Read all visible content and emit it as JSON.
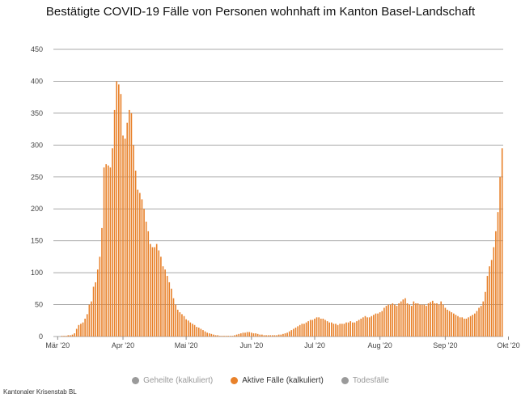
{
  "title": "Bestätigte COVID-19 Fälle von Personen wohnhaft im Kanton Basel-Landschaft",
  "source": "Kantonaler Krisenstab BL",
  "legend": [
    {
      "label": "Geheilte (kalkuliert)",
      "color": "#9a9a9a",
      "active": false
    },
    {
      "label": "Aktive Fälle (kalkuliert)",
      "color": "#e8812a",
      "active": true
    },
    {
      "label": "Todesfälle",
      "color": "#9a9a9a",
      "active": false
    }
  ],
  "chart_data": {
    "type": "bar",
    "title": "Bestätigte COVID-19 Fälle von Personen wohnhaft im Kanton Basel-Landschaft",
    "xlabel": "",
    "ylabel": "",
    "ylim": [
      0,
      450
    ],
    "yticks": [
      0,
      50,
      100,
      150,
      200,
      250,
      300,
      350,
      400,
      450
    ],
    "x_tick_labels": [
      "Mär '20",
      "Apr '20",
      "Mai '20",
      "Jun '20",
      "Jul '20",
      "Aug '20",
      "Sep '20",
      "Okt '20"
    ],
    "x_tick_index": [
      0,
      31,
      61,
      92,
      122,
      153,
      184,
      214
    ],
    "grid": true,
    "legend_position": "bottom",
    "bar_color": "#e8812a",
    "series": [
      {
        "name": "Aktive Fälle (kalkuliert)",
        "values": [
          0,
          0,
          1,
          1,
          1,
          2,
          2,
          3,
          5,
          12,
          18,
          20,
          22,
          28,
          35,
          50,
          55,
          78,
          85,
          105,
          125,
          170,
          265,
          270,
          268,
          265,
          295,
          355,
          400,
          395,
          380,
          315,
          310,
          335,
          355,
          350,
          300,
          260,
          230,
          225,
          215,
          200,
          180,
          165,
          145,
          140,
          140,
          145,
          135,
          125,
          110,
          105,
          95,
          85,
          75,
          60,
          50,
          42,
          38,
          35,
          32,
          27,
          25,
          22,
          20,
          18,
          15,
          14,
          12,
          10,
          8,
          6,
          5,
          4,
          3,
          2,
          2,
          1,
          1,
          1,
          1,
          1,
          1,
          1,
          2,
          3,
          4,
          5,
          6,
          6,
          7,
          7,
          6,
          5,
          5,
          4,
          3,
          3,
          2,
          2,
          2,
          2,
          2,
          2,
          2,
          3,
          3,
          4,
          5,
          6,
          8,
          10,
          12,
          14,
          16,
          18,
          20,
          20,
          22,
          24,
          26,
          26,
          28,
          30,
          30,
          28,
          28,
          26,
          24,
          22,
          22,
          20,
          20,
          18,
          20,
          20,
          20,
          22,
          22,
          24,
          22,
          22,
          24,
          26,
          28,
          30,
          32,
          30,
          30,
          32,
          34,
          36,
          36,
          38,
          40,
          45,
          48,
          50,
          50,
          52,
          50,
          48,
          52,
          55,
          58,
          60,
          52,
          50,
          48,
          55,
          52,
          52,
          50,
          50,
          50,
          48,
          52,
          54,
          56,
          52,
          52,
          50,
          55,
          50,
          45,
          42,
          40,
          38,
          36,
          34,
          32,
          30,
          30,
          28,
          28,
          30,
          32,
          34,
          36,
          40,
          45,
          48,
          55,
          70,
          95,
          110,
          120,
          140,
          165,
          195,
          250,
          295
        ]
      }
    ]
  }
}
